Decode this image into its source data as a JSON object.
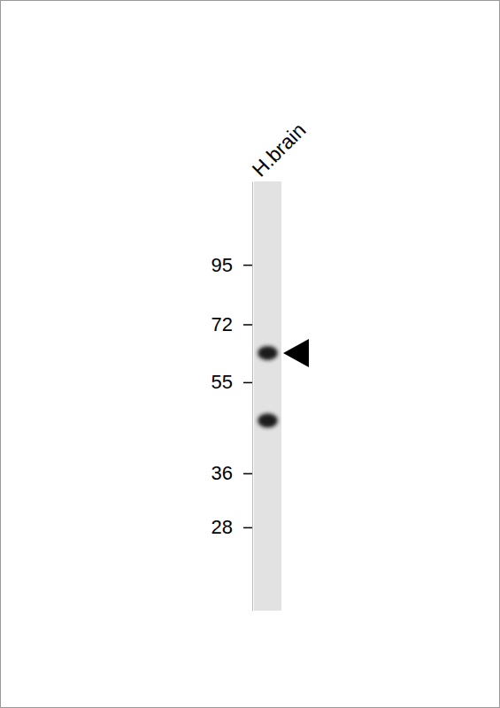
{
  "chart_data": {
    "type": "western_blot",
    "lanes": [
      {
        "label": "H.brain",
        "bands": [
          63,
          46
        ]
      }
    ],
    "color": "#1a1a1a",
    "log": "y",
    "ylim": [
      19,
      140
    ],
    "yticks": [
      28,
      36,
      55,
      72,
      95
    ]
  }
}
